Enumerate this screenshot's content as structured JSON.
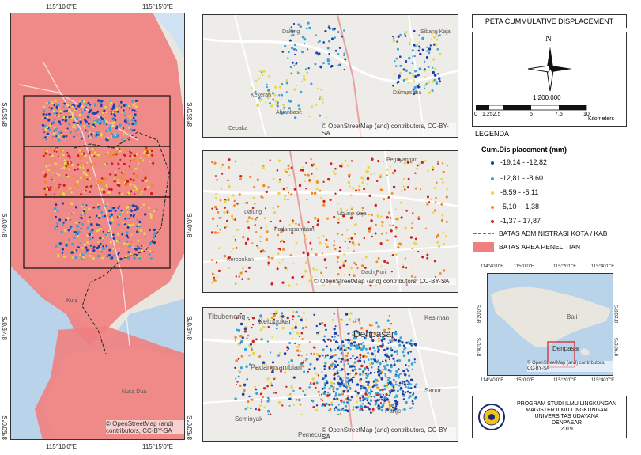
{
  "main_map": {
    "coords_top": [
      "115°10'0\"E",
      "115°15'0\"E"
    ],
    "coords_bottom": [
      "115°10'0\"E",
      "115°15'0\"E"
    ],
    "coords_left": [
      "8°35'0\"S",
      "8°40'0\"S",
      "8°45'0\"S",
      "8°50'0\"S"
    ],
    "coords_right": [
      "8°35'0\"S",
      "8°40'0\"S",
      "8°45'0\"S",
      "8°50'0\"S"
    ],
    "credit": "© OpenStreetMap (and) contributors, CC-BY-SA",
    "places": [
      "Kuta",
      "Nusa Dua"
    ]
  },
  "inset_maps": [
    {
      "credit": "© OpenStreetMap (and) contributors, CC-BY-SA",
      "places": [
        "Kekeran",
        "Abianbase",
        "Cepaka",
        "Dalung",
        "Sibang Kaja",
        "Darmasaba"
      ]
    },
    {
      "credit": "© OpenStreetMap (and) contributors, CC-BY-SA",
      "places": [
        "Peguyangan",
        "Dalung",
        "Ubung Kaja",
        "Padangsambian",
        "Kerobokan",
        "Dauh Puri"
      ]
    },
    {
      "credit": "© OpenStreetMap (and) contributors, CC-BY-SA",
      "places": [
        "Tibubeneng",
        "Kerobokan",
        "Denpasar",
        "Kesiman",
        "Padangsambian",
        "Sanur",
        "Seminyak",
        "Panjer",
        "Pemecutan"
      ]
    }
  ],
  "panel": {
    "title": "PETA CUMMULATIVE DISPLACEMENT",
    "north_label": "N",
    "scale_text": "1:200.000",
    "scale_ticks": [
      "0",
      "1,252,5",
      "5",
      "7,5",
      "10"
    ],
    "scale_unit": "Kilometers",
    "legend_heading": "LEGENDA",
    "legend_title": "Cum.Dis placement (mm)",
    "legend_items": [
      {
        "label": "-19,14 - -12,82",
        "color": "#1f3fa8"
      },
      {
        "label": "-12,81 - -8,60",
        "color": "#39a3d6"
      },
      {
        "label": "-8,59 - -5,11",
        "color": "#e6d84a"
      },
      {
        "label": "-5,10 - -1,38",
        "color": "#f08a2a"
      },
      {
        "label": "-1,37 - 17,87",
        "color": "#d02020"
      }
    ],
    "boundary_label": "BATAS ADMINISTRASI KOTA / KAB",
    "area_label": "BATAS AREA PENELITIAN",
    "area_color": "#f08080",
    "locator": {
      "coords_top": [
        "114°40'0\"E",
        "115°0'0\"E",
        "115°20'0\"E",
        "115°40'0\"E"
      ],
      "coords_bottom": [
        "114°40'0\"E",
        "115°0'0\"E",
        "115°20'0\"E",
        "115°40'0\"E"
      ],
      "coords_left": [
        "8°20'0\"S",
        "8°40'0\"S"
      ],
      "coords_right": [
        "8°20'0\"S",
        "8°40'0\"S"
      ],
      "labels": [
        "Bali",
        "Denpasar"
      ],
      "credit": "© OpenStreetMap (and) contributors, CC-BY-SA"
    },
    "institution": {
      "line1": "PROGRAM STUDI ILMU LINGKUNGAN",
      "line2": "MAGISTER ILMU LINGKUNGAN",
      "line3": "UNIVERSITAS UDAYANA",
      "line4": "DENPASAR",
      "year": "2019"
    }
  }
}
